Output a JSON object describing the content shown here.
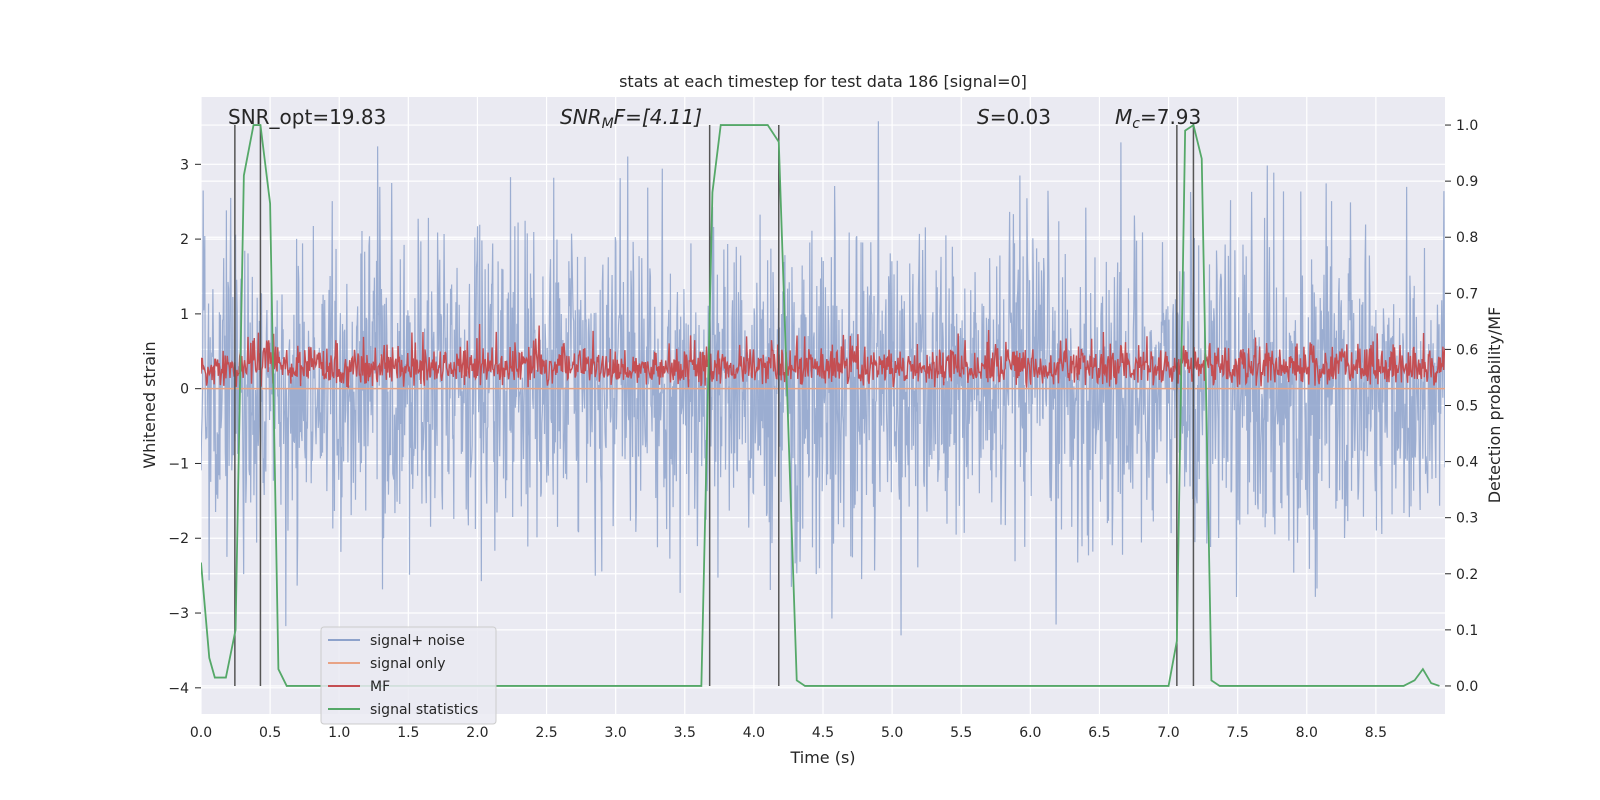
{
  "chart_data": {
    "type": "line",
    "title": "stats at each timestep for test data 186 [signal=0]",
    "xlabel": "Time (s)",
    "ylabel": "Whitened strain",
    "y2label": "Detection probability/MF",
    "xlim": [
      0.0,
      9.0
    ],
    "ylim": [
      -4.35,
      3.9
    ],
    "y2lim": [
      -0.05,
      1.05
    ],
    "x_ticks": [
      0.0,
      0.5,
      1.0,
      1.5,
      2.0,
      2.5,
      3.0,
      3.5,
      4.0,
      4.5,
      5.0,
      5.5,
      6.0,
      6.5,
      7.0,
      7.5,
      8.0,
      8.5
    ],
    "x_tick_labels": [
      "0.0",
      "0.5",
      "1.0",
      "1.5",
      "2.0",
      "2.5",
      "3.0",
      "3.5",
      "4.0",
      "4.5",
      "5.0",
      "5.5",
      "6.0",
      "6.5",
      "7.0",
      "7.5",
      "8.0",
      "8.5"
    ],
    "y_ticks": [
      -4,
      -3,
      -2,
      -1,
      0,
      1,
      2,
      3
    ],
    "y_tick_labels": [
      "−4",
      "−3",
      "−2",
      "−1",
      "0",
      "1",
      "2",
      "3"
    ],
    "y2_ticks": [
      0.0,
      0.1,
      0.2,
      0.3,
      0.4,
      0.5,
      0.6,
      0.7,
      0.8,
      0.9,
      1.0
    ],
    "y2_tick_labels": [
      "0.0",
      "0.1",
      "0.2",
      "0.3",
      "0.4",
      "0.5",
      "0.6",
      "0.7",
      "0.8",
      "0.9",
      "1.0"
    ],
    "grid": true,
    "legend_position": "lower-left",
    "annotations": {
      "snr_opt": "SNR_opt=19.83",
      "snr_mf_var": "SNR",
      "snr_mf_sub": "M",
      "snr_mf_rest": "F=[4.11]",
      "s_var": "S",
      "s_rest": "=0.03",
      "mc_var": "M",
      "mc_sub": "c",
      "mc_rest": "=7.93"
    },
    "series": [
      {
        "name": "signal+ noise",
        "color": "#8da2cb",
        "axis": "left",
        "kind": "noise",
        "std": 1.05,
        "range_hint": [
          -3.7,
          3.6
        ]
      },
      {
        "name": "signal only",
        "color": "#e8a385",
        "axis": "left",
        "kind": "flat",
        "value": 0.0
      },
      {
        "name": "MF",
        "color": "#c44e52",
        "axis": "left",
        "kind": "mf",
        "range_hint": [
          0.0,
          0.95
        ]
      },
      {
        "name": "signal statistics",
        "color": "#55a868",
        "axis": "right",
        "kind": "line",
        "x": [
          0.0,
          0.06,
          0.1,
          0.17,
          0.18,
          0.25,
          0.31,
          0.38,
          0.43,
          0.5,
          0.56,
          0.62,
          0.68,
          0.75,
          3.62,
          3.7,
          3.76,
          3.82,
          4.1,
          4.18,
          4.31,
          4.37,
          4.43,
          7.0,
          7.06,
          7.12,
          7.18,
          7.24,
          7.31,
          7.37,
          7.43,
          8.7,
          8.78,
          8.84,
          8.9,
          8.96
        ],
        "y": [
          0.22,
          0.05,
          0.015,
          0.015,
          0.015,
          0.1,
          0.91,
          1.0,
          1.0,
          0.86,
          0.03,
          0.0,
          0.0,
          0.0,
          0.0,
          0.88,
          1.0,
          1.0,
          1.0,
          0.97,
          0.01,
          0.0,
          0.0,
          0.0,
          0.08,
          0.99,
          1.0,
          0.94,
          0.01,
          0.0,
          0.0,
          0.0,
          0.01,
          0.03,
          0.005,
          0.0
        ]
      }
    ],
    "vertical_markers": [
      0.245,
      0.43,
      3.68,
      4.18,
      7.06,
      7.18
    ],
    "marker_color": "#555555"
  }
}
